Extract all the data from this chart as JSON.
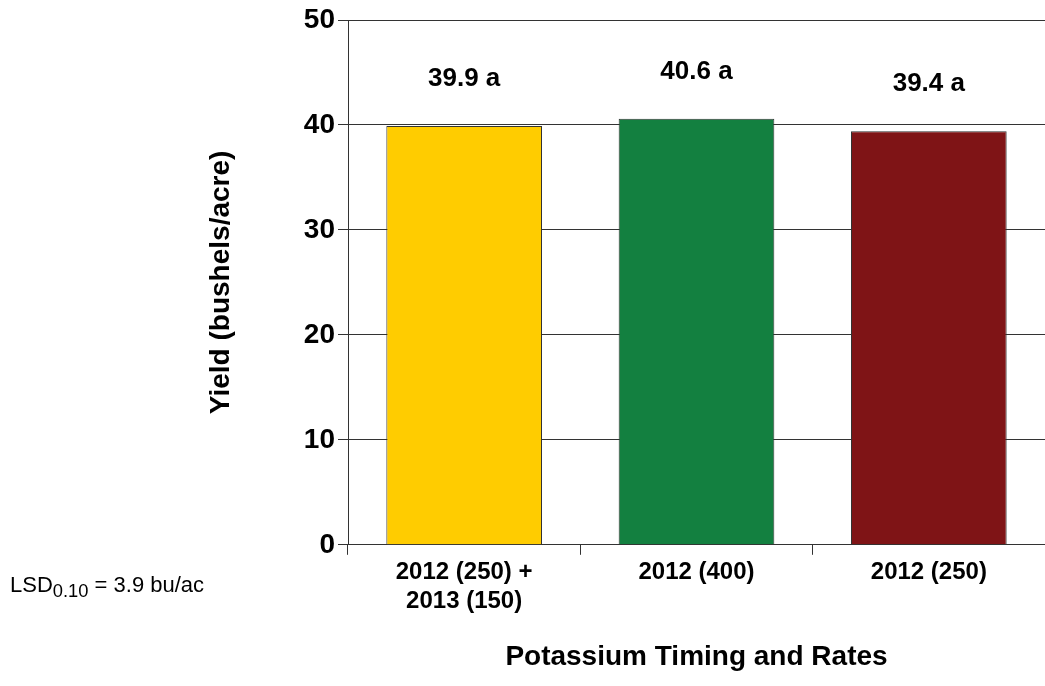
{
  "chart_data": {
    "type": "bar",
    "xlabel": "Potassium Timing and Rates",
    "ylabel": "Yield (bushels/acre)",
    "categories": [
      "2012 (250) + 2013 (150)",
      "2012 (400)",
      "2012 (250)"
    ],
    "values": [
      39.9,
      40.6,
      39.4
    ],
    "colors": [
      "#ffcc00",
      "#138040",
      "#7f1416"
    ],
    "value_labels": [
      "39.9 a",
      "40.6 a",
      "39.4 a"
    ],
    "ylim": [
      0,
      50
    ],
    "yticks": [
      0,
      10,
      20,
      30,
      40,
      50
    ],
    "grid": "y",
    "legend": false,
    "annotations": [
      "LSD$_{0.10}$  =  3.9 bu/ac"
    ]
  }
}
